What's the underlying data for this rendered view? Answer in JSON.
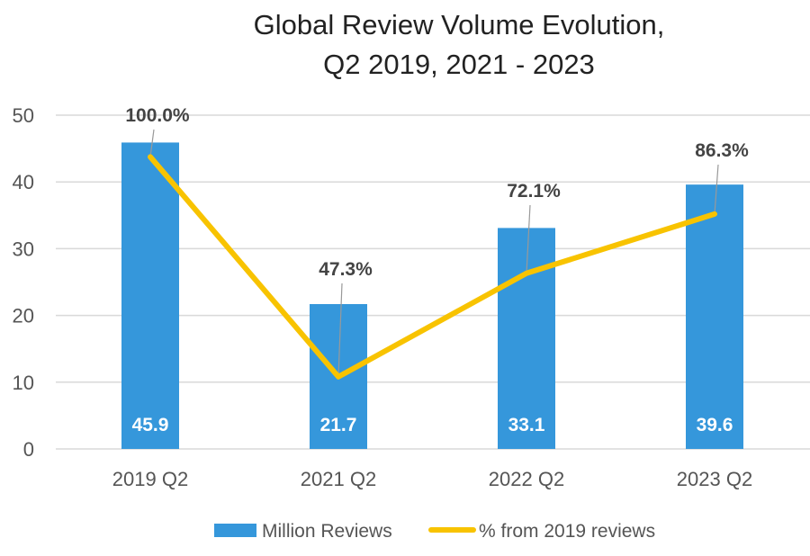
{
  "chart_data": {
    "type": "bar+line",
    "title_lines": [
      "Global Review Volume Evolution,",
      "Q2 2019, 2021 - 2023"
    ],
    "categories": [
      "2019 Q2",
      "2021 Q2",
      "2022 Q2",
      "2023 Q2"
    ],
    "ylim": [
      0,
      50
    ],
    "yticks": [
      "0",
      "10",
      "20",
      "30",
      "40",
      "50"
    ],
    "grid": true,
    "legend_position": "bottom",
    "series": [
      {
        "name": "Million Reviews",
        "type": "bar",
        "color": "#3597DB",
        "values": [
          45.9,
          21.7,
          33.1,
          39.6
        ],
        "labels": [
          "45.9",
          "21.7",
          "33.1",
          "39.6"
        ]
      },
      {
        "name": "% from 2019 reviews",
        "type": "line",
        "axis": "secondary (hidden)",
        "ylim": [
          30,
          110
        ],
        "color": "#F8C300",
        "values": [
          100.0,
          47.3,
          72.1,
          86.3
        ],
        "labels": [
          "100.0%",
          "47.3%",
          "72.1%",
          "86.3%"
        ]
      }
    ]
  }
}
